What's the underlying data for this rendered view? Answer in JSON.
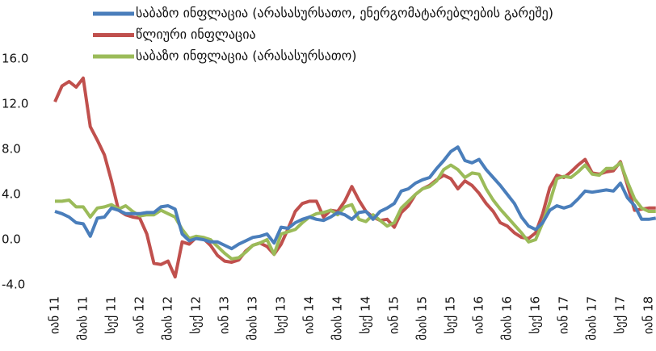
{
  "chart_data": {
    "type": "line",
    "categories": [
      "იან 11",
      null,
      null,
      null,
      "მაის 11",
      null,
      null,
      null,
      "სექ 11",
      null,
      null,
      null,
      "იან 12",
      null,
      null,
      null,
      "მაის 12",
      null,
      null,
      null,
      "სექ 12",
      null,
      null,
      null,
      "იან 13",
      null,
      null,
      null,
      "მაის 13",
      null,
      null,
      null,
      "სექ 13",
      null,
      null,
      null,
      "იან 14",
      null,
      null,
      null,
      "მაის 14",
      null,
      null,
      null,
      "სექ 14",
      null,
      null,
      null,
      "იან 15",
      null,
      null,
      null,
      "მაის 15",
      null,
      null,
      null,
      "სექ 15",
      null,
      null,
      null,
      "იან 16",
      null,
      null,
      null,
      "მაის 16",
      null,
      null,
      null,
      "სექ 16",
      null,
      null,
      null,
      "იან 17",
      null,
      null,
      null,
      "მაის 17",
      null,
      null,
      null,
      "სექ 17",
      null,
      null,
      null,
      "იან 18",
      null
    ],
    "series": [
      {
        "name": "საბაზო ინფლაცია (არასასურსათო, ენერგომატარებლების გარეშე)",
        "color": "#4a7ebb",
        "values": [
          2.5,
          2.3,
          2.0,
          1.5,
          1.4,
          0.3,
          1.9,
          2.0,
          2.8,
          2.6,
          2.3,
          2.3,
          2.3,
          2.4,
          2.4,
          2.9,
          3.0,
          2.7,
          0.5,
          -0.1,
          0.1,
          0,
          -0.2,
          -0.2,
          -0.5,
          -0.8,
          -0.4,
          -0.1,
          0.2,
          0.3,
          0.5,
          -0.3,
          1.1,
          1.0,
          1.5,
          1.8,
          2.0,
          1.8,
          1.7,
          2.0,
          2.4,
          2.2,
          1.8,
          2.4,
          2.5,
          1.8,
          2.5,
          2.8,
          3.2,
          4.3,
          4.5,
          5.0,
          5.3,
          5.5,
          6.3,
          7.0,
          7.8,
          8.2,
          7.0,
          6.8,
          7.1,
          6.2,
          5.5,
          4.8,
          4.0,
          3.2,
          2.0,
          1.2,
          0.9,
          1.5,
          2.6,
          3.0,
          2.8,
          3.0,
          3.6,
          4.3,
          4.2,
          4.3,
          4.4,
          4.3,
          5.0,
          3.7,
          3.0,
          1.8,
          1.8,
          1.9
        ]
      },
      {
        "name": "წლიური ინფლაცია",
        "color": "#c0504d",
        "values": [
          12.2,
          13.6,
          14.0,
          13.5,
          14.3,
          10.0,
          8.8,
          7.5,
          5.2,
          2.6,
          2.2,
          2.0,
          1.9,
          0.5,
          -2.1,
          -2.2,
          -1.9,
          -3.3,
          -0.2,
          -0.4,
          0.2,
          0.1,
          -0.5,
          -1.4,
          -1.9,
          -2.0,
          -1.8,
          -1.0,
          -0.5,
          -0.3,
          -0.6,
          -1.3,
          -0.4,
          1.0,
          2.5,
          3.2,
          3.4,
          3.4,
          2.0,
          2.6,
          2.5,
          3.4,
          4.7,
          3.5,
          2.5,
          2.0,
          1.7,
          1.8,
          1.1,
          2.4,
          3.0,
          4.0,
          4.5,
          4.8,
          5.3,
          5.7,
          5.4,
          4.5,
          5.2,
          4.8,
          4.1,
          3.2,
          2.5,
          1.5,
          1.2,
          0.6,
          0.2,
          0.1,
          0.6,
          2.3,
          4.6,
          5.7,
          5.5,
          6.0,
          6.6,
          7.1,
          5.9,
          5.8,
          6.0,
          6.1,
          6.9,
          4.8,
          2.6,
          2.7,
          2.8,
          2.8
        ]
      },
      {
        "name": "საბაზო ინფლაცია (არასასურსათო)",
        "color": "#9bbb59",
        "values": [
          3.4,
          3.4,
          3.5,
          2.9,
          2.9,
          2.0,
          2.8,
          2.9,
          3.1,
          2.7,
          3.0,
          2.5,
          2.1,
          2.2,
          2.2,
          2.6,
          2.3,
          2.0,
          0.9,
          0.1,
          0.3,
          0.2,
          0,
          -0.6,
          -1.2,
          -1.7,
          -1.6,
          -1.1,
          -0.5,
          -0.3,
          0.0,
          -1.3,
          0.5,
          0.7,
          0.9,
          1.5,
          2.0,
          2.3,
          2.4,
          2.6,
          2.2,
          2.9,
          3.1,
          1.8,
          1.6,
          2.2,
          1.7,
          1.2,
          1.5,
          2.8,
          3.4,
          4.0,
          4.5,
          4.7,
          5.2,
          6.2,
          6.6,
          6.2,
          5.5,
          5.9,
          5.8,
          4.5,
          3.5,
          2.7,
          2.0,
          1.3,
          0.6,
          -0.2,
          0,
          1.5,
          3.3,
          5.4,
          5.6,
          5.5,
          6.0,
          6.6,
          5.8,
          5.7,
          6.3,
          6.3,
          6.8,
          5.1,
          3.6,
          2.8,
          2.5,
          2.5
        ]
      }
    ],
    "ylim": [
      -4,
      16
    ],
    "yticks": [
      {
        "value": -4,
        "label": "-4.0"
      },
      {
        "value": 0,
        "label": "0.0"
      },
      {
        "value": 4,
        "label": "4.0"
      },
      {
        "value": 8,
        "label": "8.0"
      },
      {
        "value": 12,
        "label": "12.0"
      },
      {
        "value": 16,
        "label": "16.0"
      }
    ],
    "grid": false
  }
}
